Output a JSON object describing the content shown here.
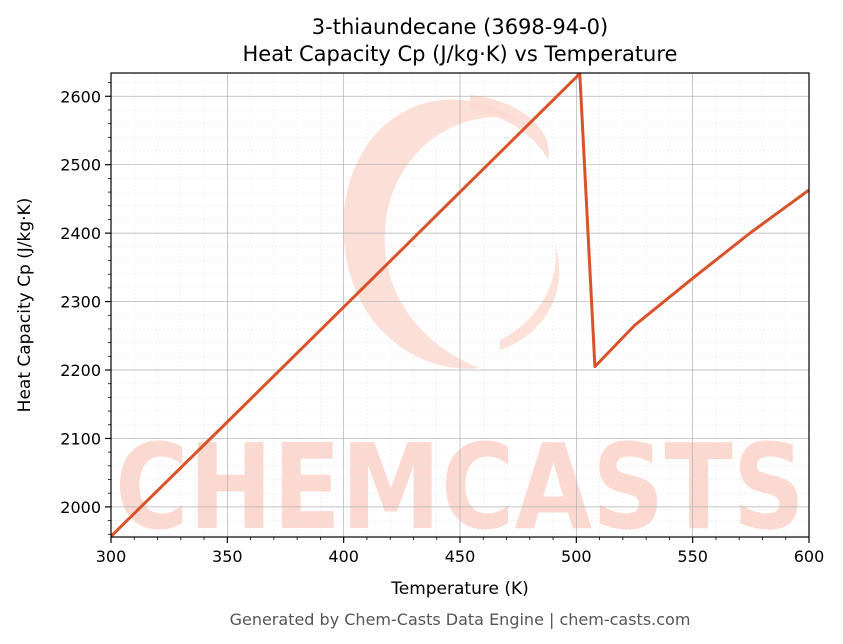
{
  "chart_data": {
    "type": "line",
    "title_line1": "3-thiaundecane (3698-94-0)",
    "title_line2": "Heat Capacity Cp (J/kg·K) vs Temperature",
    "xlabel": "Temperature (K)",
    "ylabel": "Heat Capacity Cp (J/kg·K)",
    "xlim": [
      300,
      600
    ],
    "ylim": [
      1956,
      2634
    ],
    "xticks": [
      300,
      350,
      400,
      450,
      500,
      550,
      600
    ],
    "yticks": [
      2000,
      2100,
      2200,
      2300,
      2400,
      2500,
      2600
    ],
    "grid": true,
    "series": [
      {
        "color": "#d9532a",
        "x": [
          300,
          350,
          400,
          450,
          501.5,
          508,
          525,
          550,
          575,
          600
        ],
        "y": [
          1957,
          2124,
          2292,
          2460,
          2633,
          2205,
          2265,
          2334,
          2401,
          2463
        ]
      }
    ]
  },
  "watermark": {
    "text": "CHEMCASTS",
    "color": "#fcd9d0"
  },
  "footer": "Generated by Chem-Casts Data Engine | chem-casts.com"
}
